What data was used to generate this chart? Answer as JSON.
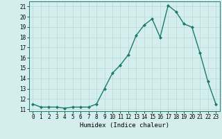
{
  "x": [
    0,
    1,
    2,
    3,
    4,
    5,
    6,
    7,
    8,
    9,
    10,
    11,
    12,
    13,
    14,
    15,
    16,
    17,
    18,
    19,
    20,
    21,
    22,
    23
  ],
  "y": [
    11.5,
    11.2,
    11.2,
    11.2,
    11.1,
    11.2,
    11.2,
    11.2,
    11.5,
    13.0,
    14.5,
    15.3,
    16.3,
    18.2,
    19.2,
    19.8,
    18.0,
    21.1,
    20.5,
    19.3,
    19.0,
    16.5,
    13.7,
    11.5
  ],
  "line_color": "#1a7a6e",
  "marker": "D",
  "marker_size": 2.0,
  "line_width": 1.0,
  "xlabel": "Humidex (Indice chaleur)",
  "xlim": [
    -0.5,
    23.5
  ],
  "ylim": [
    10.8,
    21.5
  ],
  "yticks": [
    11,
    12,
    13,
    14,
    15,
    16,
    17,
    18,
    19,
    20,
    21
  ],
  "xticks": [
    0,
    1,
    2,
    3,
    4,
    5,
    6,
    7,
    8,
    9,
    10,
    11,
    12,
    13,
    14,
    15,
    16,
    17,
    18,
    19,
    20,
    21,
    22,
    23
  ],
  "bg_color": "#d4eeed",
  "grid_color": "#b8d8d5",
  "tick_fontsize": 5.5,
  "xlabel_fontsize": 6.5
}
